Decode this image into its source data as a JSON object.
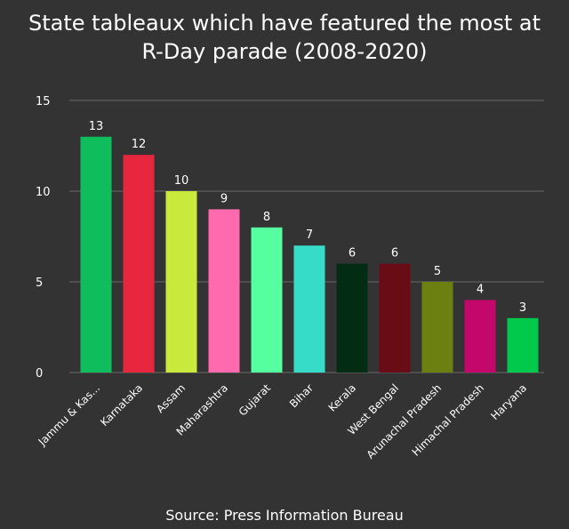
{
  "title_line1": "State tableaux which have featured the most at",
  "title_line2": "R-Day parade (2008-2020)",
  "source": "Source: Press Information Bureau",
  "colors": {
    "background": "#333333",
    "grid": "#6a6a6a",
    "text": "#ffffff"
  },
  "chart_data": {
    "type": "bar",
    "categories": [
      "Jammu & Kas...",
      "Karnataka",
      "Assam",
      "Maharashtra",
      "Gujarat",
      "Bihar",
      "Kerala",
      "West Bengal",
      "Arunachal Pradesh",
      "Himachal Pradesh",
      "Haryana"
    ],
    "values": [
      13,
      12,
      10,
      9,
      8,
      7,
      6,
      6,
      5,
      4,
      3
    ],
    "bar_colors": [
      "#0fbd5d",
      "#e6273e",
      "#c9ea3c",
      "#ff6aaf",
      "#55ffa0",
      "#37dcc8",
      "#022c13",
      "#6a0c16",
      "#6c8012",
      "#c4076a",
      "#00c94b"
    ],
    "data_labels": [
      "13",
      "12",
      "10",
      "9",
      "8",
      "7",
      "6",
      "6",
      "5",
      "4",
      "3"
    ],
    "yticks": [
      0,
      5,
      10,
      15
    ],
    "ytick_labels": [
      "0",
      "5",
      "10",
      "15"
    ],
    "ylim": [
      0,
      15
    ],
    "grid": true,
    "legend": "none"
  }
}
